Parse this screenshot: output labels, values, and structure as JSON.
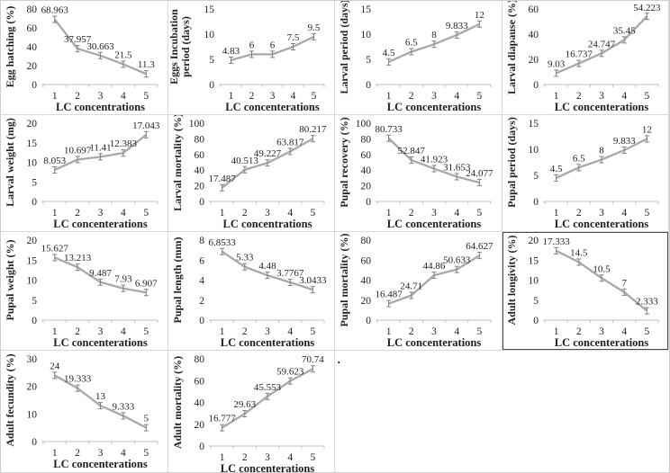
{
  "style": {
    "line_color": "#a8a8a8",
    "error_color": "#7f7f7f",
    "axis_color": "#bfbfbf",
    "text_color": "#1f1f1f",
    "highlight_border_color": "#4a4a4a"
  },
  "stray_dot": ".",
  "chart_data": [
    {
      "type": "line",
      "title": "",
      "ylabel": "Egg hatching (%)",
      "xlabel": "LC concentrations",
      "x": [
        1,
        2,
        3,
        4,
        5
      ],
      "values": [
        68.963,
        37.957,
        30.663,
        21.5,
        11.3
      ],
      "ylim": [
        0,
        80
      ],
      "yticks": [
        0,
        20,
        40,
        60,
        80
      ],
      "error_bars": true,
      "grid": false,
      "legend": "none",
      "boxed": false
    },
    {
      "type": "line",
      "title": "",
      "ylabel": "Eggs Incubation period (days)",
      "ylabel_lines": [
        "Eggs Incubation",
        "period (days)"
      ],
      "xlabel": "LC concenterations",
      "x": [
        1,
        2,
        3,
        4,
        5
      ],
      "values": [
        4.83,
        6,
        6,
        7.5,
        9.5
      ],
      "ylim": [
        0,
        15
      ],
      "yticks": [
        0,
        5,
        10,
        15
      ],
      "error_bars": true,
      "grid": false,
      "legend": "none",
      "boxed": false
    },
    {
      "type": "line",
      "title": "",
      "ylabel": "Larval period (days)",
      "xlabel": "LC concenterations",
      "x": [
        1,
        2,
        3,
        4,
        5
      ],
      "values": [
        4.5,
        6.5,
        8,
        9.833,
        12
      ],
      "ylim": [
        0,
        15
      ],
      "yticks": [
        0,
        5,
        10,
        15
      ],
      "error_bars": true,
      "grid": false,
      "legend": "none",
      "boxed": false
    },
    {
      "type": "line",
      "title": "",
      "ylabel": "Larval diapause (%)",
      "xlabel": "LC concenterations",
      "x": [
        1,
        2,
        3,
        4,
        5
      ],
      "values": [
        9.03,
        16.737,
        24.747,
        35.45,
        54.223
      ],
      "ylim": [
        0,
        60
      ],
      "yticks": [
        0,
        20,
        40,
        60
      ],
      "error_bars": true,
      "grid": false,
      "legend": "none",
      "boxed": false
    },
    {
      "type": "line",
      "title": "",
      "ylabel": "Larval weight (mg)",
      "xlabel": "LC concenterations",
      "x": [
        1,
        2,
        3,
        4,
        5
      ],
      "values": [
        8.053,
        10.697,
        11.41,
        12.383,
        17.043
      ],
      "ylim": [
        0,
        20
      ],
      "yticks": [
        0,
        5,
        10,
        15,
        20
      ],
      "error_bars": true,
      "grid": false,
      "legend": "none",
      "boxed": false
    },
    {
      "type": "line",
      "title": "",
      "ylabel": "Larval mortality (%)",
      "xlabel": "LC concentrations",
      "x": [
        1,
        2,
        3,
        4,
        5
      ],
      "values": [
        17.487,
        40.513,
        49.227,
        63.817,
        80.217
      ],
      "ylim": [
        0,
        100
      ],
      "yticks": [
        0,
        20,
        40,
        60,
        80,
        100
      ],
      "error_bars": true,
      "grid": false,
      "legend": "none",
      "boxed": false
    },
    {
      "type": "line",
      "title": "",
      "ylabel": "Pupal recovery (%)",
      "xlabel": "LC concenterations",
      "x": [
        1,
        2,
        3,
        4,
        5
      ],
      "values": [
        80.733,
        52.847,
        41.923,
        31.653,
        24.077
      ],
      "ylim": [
        0,
        100
      ],
      "yticks": [
        0,
        20,
        40,
        60,
        80,
        100
      ],
      "error_bars": true,
      "grid": false,
      "legend": "none",
      "boxed": false
    },
    {
      "type": "line",
      "title": "",
      "ylabel": "Pupal period (days)",
      "xlabel": "LC concenterations",
      "x": [
        1,
        2,
        3,
        4,
        5
      ],
      "values": [
        4.5,
        6.5,
        8,
        9.833,
        12
      ],
      "ylim": [
        0,
        15
      ],
      "yticks": [
        0,
        5,
        10,
        15
      ],
      "error_bars": true,
      "grid": false,
      "legend": "none",
      "boxed": false
    },
    {
      "type": "line",
      "title": "",
      "ylabel": "Pupal weight (%)",
      "xlabel": "LC concenterations",
      "x": [
        1,
        2,
        3,
        4,
        5
      ],
      "values": [
        15.627,
        13.213,
        9.487,
        7.93,
        6.907
      ],
      "ylim": [
        0,
        20
      ],
      "yticks": [
        0,
        5,
        10,
        15,
        20
      ],
      "error_bars": true,
      "grid": false,
      "legend": "none",
      "boxed": false
    },
    {
      "type": "line",
      "title": "",
      "ylabel": "Pupal length (mm)",
      "xlabel": "LC concenterations",
      "x": [
        1,
        2,
        3,
        4,
        5
      ],
      "values": [
        6.8533,
        5.33,
        4.48,
        3.7767,
        3.0433
      ],
      "ylim": [
        0,
        8
      ],
      "yticks": [
        0,
        2,
        4,
        6,
        8
      ],
      "error_bars": true,
      "grid": false,
      "legend": "none",
      "boxed": false
    },
    {
      "type": "line",
      "title": "",
      "ylabel": "Pupal mortality (%)",
      "xlabel": "LC concenterations",
      "x": [
        1,
        2,
        3,
        4,
        5
      ],
      "values": [
        16.487,
        24.71,
        44.86,
        50.633,
        64.627
      ],
      "ylim": [
        0,
        80
      ],
      "yticks": [
        0,
        20,
        40,
        60,
        80
      ],
      "error_bars": true,
      "grid": false,
      "legend": "none",
      "boxed": false
    },
    {
      "type": "line",
      "title": "",
      "ylabel": "Adult longivity (%)",
      "xlabel": "LC concenterations",
      "x": [
        1,
        2,
        3,
        4,
        5
      ],
      "values": [
        17.333,
        14.5,
        10.5,
        7,
        2.333
      ],
      "ylim": [
        0,
        20
      ],
      "yticks": [
        0,
        5,
        10,
        15,
        20
      ],
      "error_bars": true,
      "grid": false,
      "legend": "none",
      "boxed": true
    },
    {
      "type": "line",
      "title": "",
      "ylabel": "Adult fecundity (%)",
      "xlabel": "LC concenterations",
      "x": [
        1,
        2,
        3,
        4,
        5
      ],
      "values": [
        24,
        19.333,
        13,
        9.333,
        5
      ],
      "ylim": [
        0,
        30
      ],
      "yticks": [
        0,
        10,
        20,
        30
      ],
      "error_bars": true,
      "grid": false,
      "legend": "none",
      "boxed": false
    },
    {
      "type": "line",
      "title": "",
      "ylabel": "Adult mortality (%)",
      "xlabel": "LC concenterations",
      "x": [
        1,
        2,
        3,
        4,
        5
      ],
      "values": [
        16.777,
        29.63,
        45.553,
        59.623,
        70.74
      ],
      "ylim": [
        0,
        80
      ],
      "yticks": [
        0,
        20,
        40,
        60,
        80
      ],
      "error_bars": true,
      "grid": false,
      "legend": "none",
      "boxed": false
    }
  ]
}
